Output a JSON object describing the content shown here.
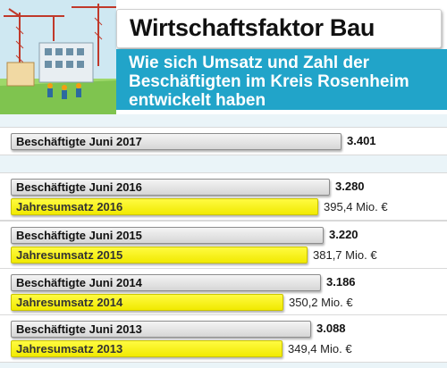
{
  "header": {
    "title": "Wirtschaftsfaktor Bau",
    "subtitle": "Wie sich Umsatz und Zahl der Beschäftigten im Kreis Rosenheim entwickelt haben"
  },
  "colors": {
    "accent": "#21a4c9",
    "employees_bar": "#d9d9d9",
    "revenue_bar": "#fff700"
  },
  "chart_data": {
    "type": "bar",
    "orientation": "horizontal",
    "rows": [
      {
        "employees_label": "Beschäftigte Juni 2017",
        "employees_value": 3401,
        "employees_text": "3.401",
        "revenue_label": null,
        "revenue_value": null,
        "revenue_text": null
      },
      {
        "employees_label": "Beschäftigte Juni 2016",
        "employees_value": 3280,
        "employees_text": "3.280",
        "revenue_label": "Jahresumsatz  2016",
        "revenue_value": 395.4,
        "revenue_text": "395,4 Mio. €"
      },
      {
        "employees_label": "Beschäftigte Juni 2015",
        "employees_value": 3220,
        "employees_text": "3.220",
        "revenue_label": "Jahresumsatz  2015",
        "revenue_value": 381.7,
        "revenue_text": "381,7 Mio. €"
      },
      {
        "employees_label": "Beschäftigte Juni 2014",
        "employees_value": 3186,
        "employees_text": "3.186",
        "revenue_label": "Jahresumsatz  2014",
        "revenue_value": 350.2,
        "revenue_text": "350,2 Mio. €"
      },
      {
        "employees_label": "Beschäftigte Juni 2013",
        "employees_value": 3088,
        "employees_text": "3.088",
        "revenue_label": "Jahresumsatz  2013",
        "revenue_value": 349.4,
        "revenue_text": "349,4 Mio. €"
      }
    ],
    "employees_xlim": [
      0,
      3401
    ],
    "revenue_xlim": [
      0,
      395.4
    ]
  }
}
